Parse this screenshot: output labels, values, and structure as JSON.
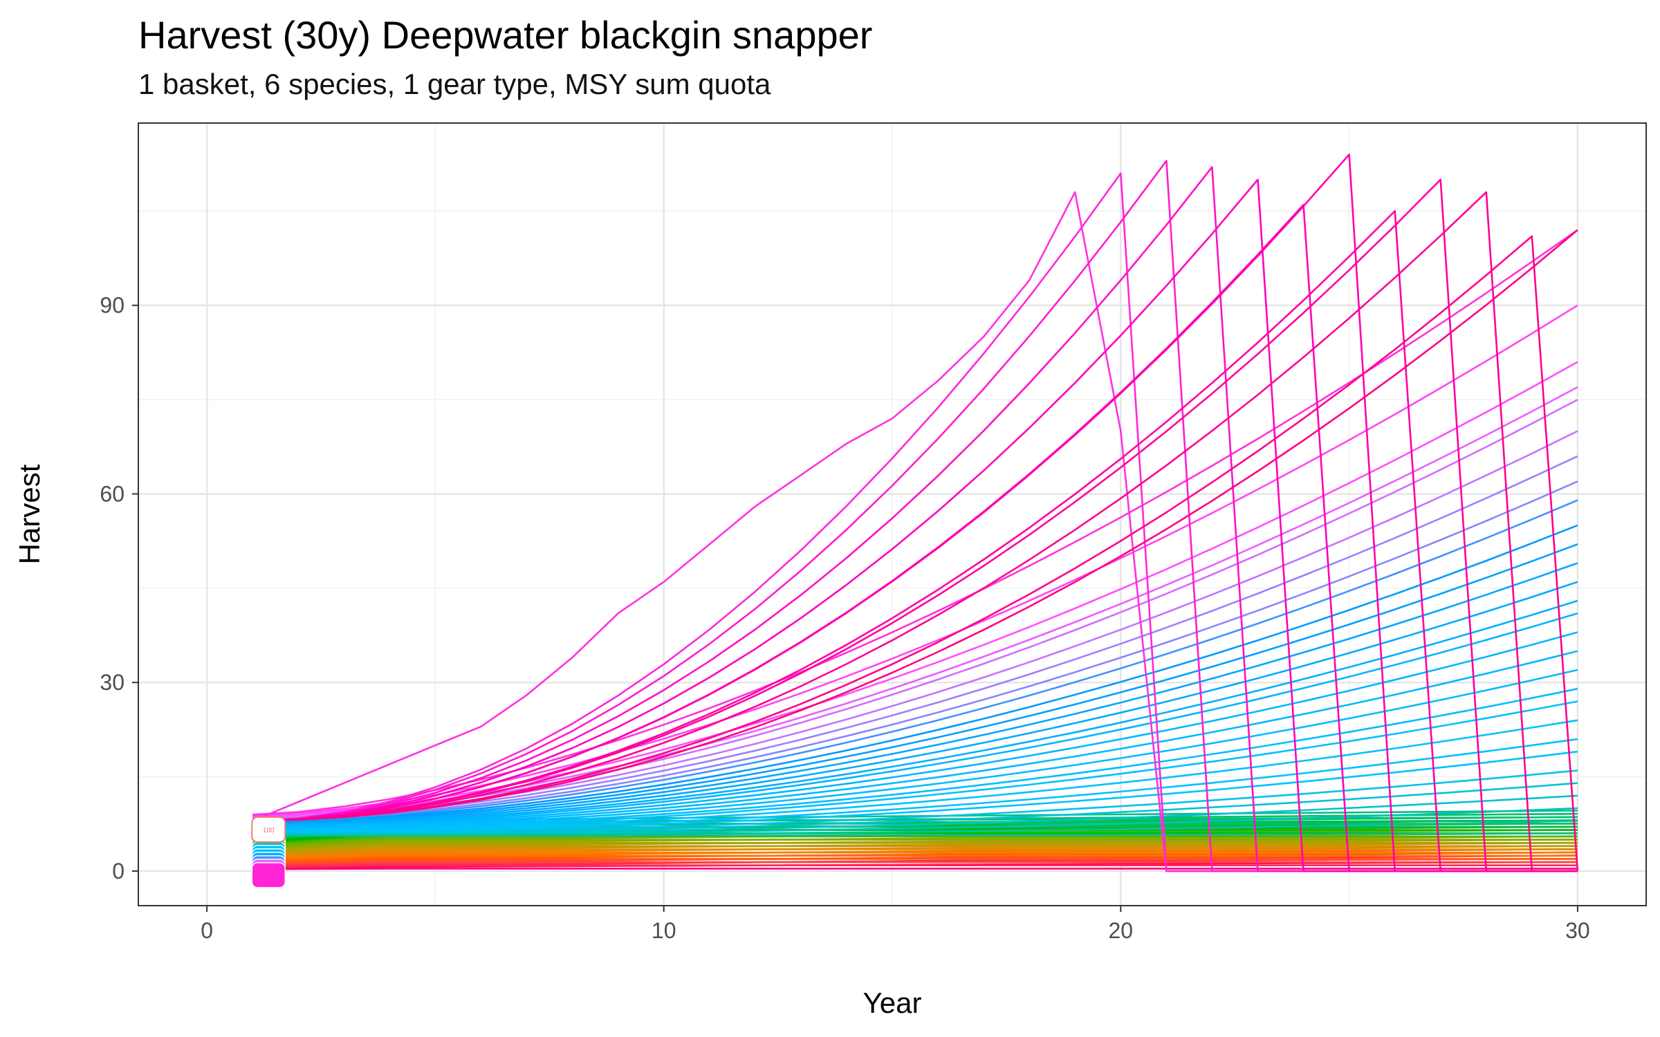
{
  "chart_data": {
    "type": "line",
    "title": "Harvest (30y) Deepwater blackgin snapper",
    "subtitle": "1 basket, 6 species, 1 gear type, MSY sum quota",
    "xlabel": "Year",
    "ylabel": "Harvest",
    "xlim": [
      -1.5,
      31.5
    ],
    "ylim": [
      -5.5,
      119
    ],
    "xticks": [
      0,
      10,
      20,
      30
    ],
    "yticks": [
      0,
      30,
      60,
      90
    ],
    "grid": true,
    "legend": "none",
    "start_label": "100",
    "x": [
      1,
      2,
      3,
      4,
      5,
      6,
      7,
      8,
      9,
      10,
      11,
      12,
      13,
      14,
      15,
      16,
      17,
      18,
      19,
      20,
      21,
      22,
      23,
      24,
      25,
      26,
      27,
      28,
      29,
      30
    ],
    "series_summary": {
      "scenario_count": 100,
      "color_gradient": [
        "#f8766d",
        "#b79f00",
        "#00ba38",
        "#00bfc4",
        "#619cff",
        "#f564e3",
        "#ff66a8"
      ],
      "highest_series_values": [
        8,
        11,
        14,
        17,
        20,
        23,
        28,
        34,
        41,
        46,
        52,
        58,
        63,
        68,
        72,
        78,
        85,
        94,
        108,
        70,
        0,
        0,
        0,
        0,
        0,
        0,
        0,
        0,
        0,
        0
      ],
      "peak_values_by_collapse_year": [
        {
          "year": 19,
          "harvest": 108
        },
        {
          "year": 20,
          "harvest": 111
        },
        {
          "year": 21,
          "harvest": 113
        },
        {
          "year": 22,
          "harvest": 112
        },
        {
          "year": 23,
          "harvest": 110
        },
        {
          "year": 24,
          "harvest": 106
        },
        {
          "year": 25,
          "harvest": 114
        },
        {
          "year": 26,
          "harvest": 105
        },
        {
          "year": 27,
          "harvest": 110
        },
        {
          "year": 28,
          "harvest": 108
        },
        {
          "year": 29,
          "harvest": 101
        },
        {
          "year": 30,
          "harvest": 102
        }
      ],
      "final_values_year_30": [
        102,
        90,
        81,
        77,
        75,
        70,
        66,
        62,
        59,
        55,
        52,
        49,
        46,
        43,
        41,
        38,
        35,
        32,
        29,
        27,
        24,
        21,
        19,
        16,
        14,
        12,
        10,
        8,
        6
      ]
    }
  }
}
